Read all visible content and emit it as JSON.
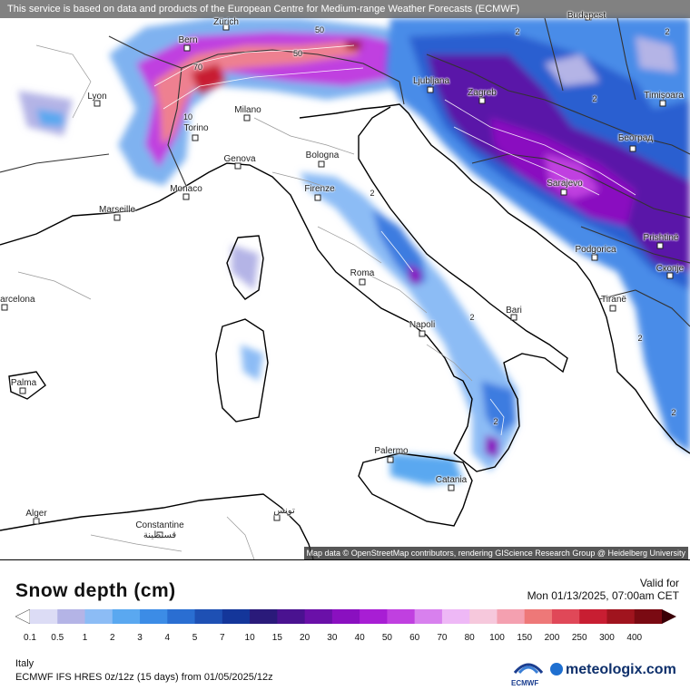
{
  "notice": "This service is based on data and products of the European Centre for Medium-range Weather Forecasts (ECMWF)",
  "attribution": "Map data © OpenStreetMap contributors, rendering GIScience Research Group @ Heidelberg University",
  "cities": [
    {
      "name": "Budapest"
    },
    {
      "name": "Zürich"
    },
    {
      "name": "Bern"
    },
    {
      "name": "Lyon"
    },
    {
      "name": "Milano"
    },
    {
      "name": "Torino"
    },
    {
      "name": "Genova"
    },
    {
      "name": "Bologna"
    },
    {
      "name": "Monaco"
    },
    {
      "name": "Marseille"
    },
    {
      "name": "Firenze"
    },
    {
      "name": "Ljubljana"
    },
    {
      "name": "Zagreb"
    },
    {
      "name": "Timișoara"
    },
    {
      "name": "Београд"
    },
    {
      "name": "Sarajevo"
    },
    {
      "name": "Podgorica"
    },
    {
      "name": "Prishtinë"
    },
    {
      "name": "Скопје"
    },
    {
      "name": "Tiranë"
    },
    {
      "name": "Roma"
    },
    {
      "name": "Napoli"
    },
    {
      "name": "Bari"
    },
    {
      "name": "Barcelona"
    },
    {
      "name": "Palma"
    },
    {
      "name": "Palermo"
    },
    {
      "name": "Catania"
    },
    {
      "name": "Alger"
    },
    {
      "name": "Constantine\nقسنطينة"
    },
    {
      "name": "تونس"
    }
  ],
  "contour_labels": [
    "70",
    "50",
    "50",
    "10",
    "2",
    "2",
    "2",
    "2",
    "2",
    "2",
    "2",
    "2"
  ],
  "legend": {
    "title": "Snow depth (cm)",
    "valid_label": "Valid for",
    "valid_time": "Mon 01/13/2025, 07:00am CET",
    "region": "Italy",
    "model_line": "ECMWF IFS HRES 0z/12z (15 days) from 01/05/2025/12z",
    "ecmwf_logo": "ECMWF",
    "brand": "meteologix.com",
    "ticks": [
      "0.1",
      "0.5",
      "1",
      "2",
      "3",
      "4",
      "5",
      "7",
      "10",
      "15",
      "20",
      "30",
      "40",
      "50",
      "60",
      "70",
      "80",
      "100",
      "150",
      "200",
      "250",
      "300",
      "400"
    ],
    "colors": [
      "#dcdcf5",
      "#b4b4e6",
      "#8cbcf5",
      "#5aa8f0",
      "#3c8ce6",
      "#2a6ed2",
      "#1e50b4",
      "#14369a",
      "#2a1a7a",
      "#4a1290",
      "#6a10a8",
      "#8a10c0",
      "#a81ed4",
      "#c040e0",
      "#d880ee",
      "#eeb8f6",
      "#f6c8dc",
      "#f4a0b0",
      "#ee7878",
      "#e04858",
      "#c81e32",
      "#a0141e",
      "#7a0a12",
      "#3a0006"
    ]
  }
}
